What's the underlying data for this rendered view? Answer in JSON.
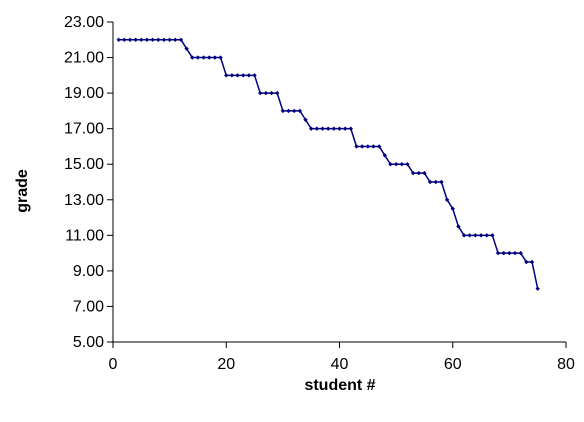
{
  "chart_data": {
    "type": "line",
    "xlabel": "student #",
    "ylabel": "grade",
    "xlim": [
      0,
      80
    ],
    "ylim": [
      5.0,
      23.0
    ],
    "x_ticks": [
      0,
      20,
      40,
      60,
      80
    ],
    "y_ticks": [
      5.0,
      7.0,
      9.0,
      11.0,
      13.0,
      15.0,
      17.0,
      19.0,
      21.0,
      23.0
    ],
    "x_tick_labels": [
      "0",
      "20",
      "40",
      "60",
      "80"
    ],
    "y_tick_labels": [
      "5.00",
      "7.00",
      "9.00",
      "11.00",
      "13.00",
      "15.00",
      "17.00",
      "19.00",
      "21.00",
      "23.00"
    ],
    "grid": false,
    "legend": "none",
    "series": [
      {
        "color": "#000080",
        "marker": "diamond",
        "x": [
          1,
          2,
          3,
          4,
          5,
          6,
          7,
          8,
          9,
          10,
          11,
          12,
          13,
          14,
          15,
          16,
          17,
          18,
          19,
          20,
          21,
          22,
          23,
          24,
          25,
          26,
          27,
          28,
          29,
          30,
          31,
          32,
          33,
          34,
          35,
          36,
          37,
          38,
          39,
          40,
          41,
          42,
          43,
          44,
          45,
          46,
          47,
          48,
          49,
          50,
          51,
          52,
          53,
          54,
          55,
          56,
          57,
          58,
          59,
          60,
          61,
          62,
          63,
          64,
          65,
          66,
          67,
          68,
          69,
          70,
          71,
          72,
          73,
          74,
          75
        ],
        "y": [
          22,
          22,
          22,
          22,
          22,
          22,
          22,
          22,
          22,
          22,
          22,
          22,
          21.5,
          21,
          21,
          21,
          21,
          21,
          21,
          20,
          20,
          20,
          20,
          20,
          20,
          19,
          19,
          19,
          19,
          18,
          18,
          18,
          18,
          17.5,
          17,
          17,
          17,
          17,
          17,
          17,
          17,
          17,
          16,
          16,
          16,
          16,
          16,
          15.5,
          15,
          15,
          15,
          15,
          14.5,
          14.5,
          14.5,
          14,
          14,
          14,
          13,
          12.5,
          11.5,
          11,
          11,
          11,
          11,
          11,
          11,
          10,
          10,
          10,
          10,
          10,
          9.5,
          9.5,
          8
        ]
      }
    ]
  }
}
